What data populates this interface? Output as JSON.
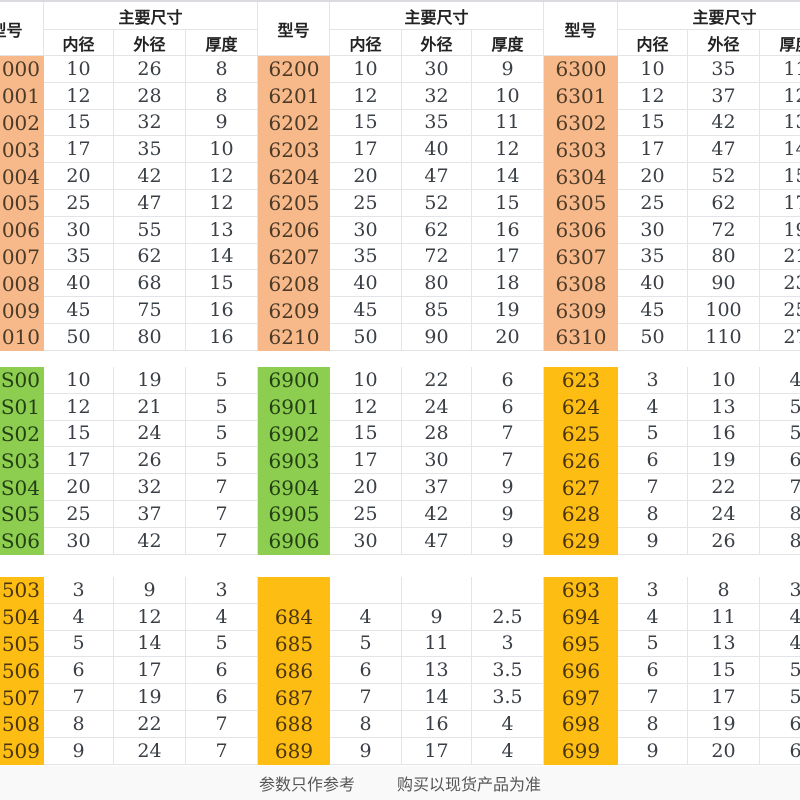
{
  "headers": {
    "model": "型号",
    "main_dims": "主要尺寸",
    "inner": "内径",
    "outer": "外径",
    "thickness": "厚度"
  },
  "groups": [
    {
      "color": "#f8b98a",
      "blocks": [
        {
          "color": "orange",
          "rows": [
            [
              "000",
              "10",
              "26",
              "8"
            ],
            [
              "001",
              "12",
              "28",
              "8"
            ],
            [
              "002",
              "15",
              "32",
              "9"
            ],
            [
              "003",
              "17",
              "35",
              "10"
            ],
            [
              "004",
              "20",
              "42",
              "12"
            ],
            [
              "005",
              "25",
              "47",
              "12"
            ],
            [
              "006",
              "30",
              "55",
              "13"
            ],
            [
              "007",
              "35",
              "62",
              "14"
            ],
            [
              "008",
              "40",
              "68",
              "15"
            ],
            [
              "009",
              "45",
              "75",
              "16"
            ],
            [
              "010",
              "50",
              "80",
              "16"
            ]
          ]
        },
        {
          "color": "green",
          "rows": [
            [
              "S00",
              "10",
              "19",
              "5"
            ],
            [
              "S01",
              "12",
              "21",
              "5"
            ],
            [
              "S02",
              "15",
              "24",
              "5"
            ],
            [
              "S03",
              "17",
              "26",
              "5"
            ],
            [
              "S04",
              "20",
              "32",
              "7"
            ],
            [
              "S05",
              "25",
              "37",
              "7"
            ],
            [
              "S06",
              "30",
              "42",
              "7"
            ]
          ]
        },
        {
          "color": "yellow",
          "rows": [
            [
              "503",
              "3",
              "9",
              "3"
            ],
            [
              "504",
              "4",
              "12",
              "4"
            ],
            [
              "505",
              "5",
              "14",
              "5"
            ],
            [
              "506",
              "6",
              "17",
              "6"
            ],
            [
              "507",
              "7",
              "19",
              "6"
            ],
            [
              "508",
              "8",
              "22",
              "7"
            ],
            [
              "509",
              "9",
              "24",
              "7"
            ]
          ]
        }
      ]
    },
    {
      "blocks": [
        {
          "color": "orange",
          "rows": [
            [
              "6200",
              "10",
              "30",
              "9"
            ],
            [
              "6201",
              "12",
              "32",
              "10"
            ],
            [
              "6202",
              "15",
              "35",
              "11"
            ],
            [
              "6203",
              "17",
              "40",
              "12"
            ],
            [
              "6204",
              "20",
              "47",
              "14"
            ],
            [
              "6205",
              "25",
              "52",
              "15"
            ],
            [
              "6206",
              "30",
              "62",
              "16"
            ],
            [
              "6207",
              "35",
              "72",
              "17"
            ],
            [
              "6208",
              "40",
              "80",
              "18"
            ],
            [
              "6209",
              "45",
              "85",
              "19"
            ],
            [
              "6210",
              "50",
              "90",
              "20"
            ]
          ]
        },
        {
          "color": "green",
          "rows": [
            [
              "6900",
              "10",
              "22",
              "6"
            ],
            [
              "6901",
              "12",
              "24",
              "6"
            ],
            [
              "6902",
              "15",
              "28",
              "7"
            ],
            [
              "6903",
              "17",
              "30",
              "7"
            ],
            [
              "6904",
              "20",
              "37",
              "9"
            ],
            [
              "6905",
              "25",
              "42",
              "9"
            ],
            [
              "6906",
              "30",
              "47",
              "9"
            ]
          ]
        },
        {
          "color": "yellow",
          "rows": [
            [
              "",
              "",
              "",
              ""
            ],
            [
              "684",
              "4",
              "9",
              "2.5"
            ],
            [
              "685",
              "5",
              "11",
              "3"
            ],
            [
              "686",
              "6",
              "13",
              "3.5"
            ],
            [
              "687",
              "7",
              "14",
              "3.5"
            ],
            [
              "688",
              "8",
              "16",
              "4"
            ],
            [
              "689",
              "9",
              "17",
              "4"
            ]
          ]
        }
      ]
    },
    {
      "blocks": [
        {
          "color": "orange",
          "rows": [
            [
              "6300",
              "10",
              "35",
              "11"
            ],
            [
              "6301",
              "12",
              "37",
              "12"
            ],
            [
              "6302",
              "15",
              "42",
              "13"
            ],
            [
              "6303",
              "17",
              "47",
              "14"
            ],
            [
              "6304",
              "20",
              "52",
              "15"
            ],
            [
              "6305",
              "25",
              "62",
              "17"
            ],
            [
              "6306",
              "30",
              "72",
              "19"
            ],
            [
              "6307",
              "35",
              "80",
              "21"
            ],
            [
              "6308",
              "40",
              "90",
              "23"
            ],
            [
              "6309",
              "45",
              "100",
              "25"
            ],
            [
              "6310",
              "50",
              "110",
              "27"
            ]
          ]
        },
        {
          "color": "yellow",
          "rows": [
            [
              "623",
              "3",
              "10",
              "4"
            ],
            [
              "624",
              "4",
              "13",
              "5"
            ],
            [
              "625",
              "5",
              "16",
              "5"
            ],
            [
              "626",
              "6",
              "19",
              "6"
            ],
            [
              "627",
              "7",
              "22",
              "7"
            ],
            [
              "628",
              "8",
              "24",
              "8"
            ],
            [
              "629",
              "9",
              "26",
              "8"
            ]
          ]
        },
        {
          "color": "yellow",
          "rows": [
            [
              "693",
              "3",
              "8",
              "3"
            ],
            [
              "694",
              "4",
              "11",
              "4"
            ],
            [
              "695",
              "5",
              "13",
              "4"
            ],
            [
              "696",
              "6",
              "15",
              "5"
            ],
            [
              "697",
              "7",
              "17",
              "5"
            ],
            [
              "698",
              "8",
              "19",
              "6"
            ],
            [
              "699",
              "9",
              "20",
              "6"
            ]
          ]
        }
      ]
    }
  ],
  "footer": {
    "note1": "参数只作参考",
    "note2": "购买以现货产品为准"
  }
}
